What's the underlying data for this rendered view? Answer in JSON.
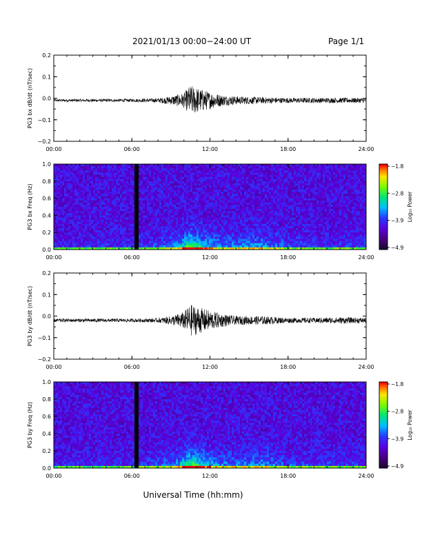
{
  "header": {
    "title": "2021/01/13  00:00−24:00 UT",
    "page": "Page 1/1"
  },
  "footer": {
    "xlabel": "Universal Time (hh:mm)"
  },
  "time_ticks": [
    "00:00",
    "06:00",
    "12:00",
    "18:00",
    "24:00"
  ],
  "chart_data": [
    {
      "type": "line",
      "ylabel": "PG3 bx dB/dt (nT/sec)",
      "xlim_hours": [
        0,
        24
      ],
      "ylim": [
        -0.2,
        0.2
      ],
      "yticks": [
        0.2,
        0.1,
        0.0,
        -0.1,
        -0.2
      ],
      "ytick_labels": [
        "0.2",
        "0.1",
        "0.0",
        "−0.1",
        "−0.2"
      ],
      "baseline": -0.01,
      "envelope": {
        "x": [
          0,
          6,
          8,
          9,
          10,
          10.5,
          11,
          12,
          13,
          14,
          16,
          18,
          20,
          22,
          24
        ],
        "amplitude": [
          0.006,
          0.007,
          0.01,
          0.02,
          0.035,
          0.07,
          0.06,
          0.04,
          0.025,
          0.02,
          0.015,
          0.012,
          0.012,
          0.012,
          0.012
        ]
      }
    },
    {
      "type": "heatmap",
      "ylabel": "PG3 bx Freq (Hz)",
      "xlim_hours": [
        0,
        24
      ],
      "ylim": [
        0.0,
        1.0
      ],
      "yticks": [
        1.0,
        0.8,
        0.6,
        0.4,
        0.2,
        0.0
      ],
      "ytick_labels": [
        "1.0",
        "0.8",
        "0.6",
        "0.4",
        "0.2",
        "0.0"
      ],
      "colorbar": {
        "label": "Log₁₀ Power",
        "range": [
          -4.9,
          -1.8
        ],
        "tick_labels": [
          "−1.8",
          "−2.8",
          "−3.9",
          "−4.9"
        ]
      },
      "data_gap_hours": 6.35
    },
    {
      "type": "line",
      "ylabel": "PG3 by dB/dt (nT/sec)",
      "xlim_hours": [
        0,
        24
      ],
      "ylim": [
        -0.2,
        0.2
      ],
      "yticks": [
        0.2,
        0.1,
        0.0,
        -0.1,
        -0.2
      ],
      "ytick_labels": [
        "0.2",
        "0.1",
        "0.0",
        "−0.1",
        "−0.2"
      ],
      "baseline": -0.02,
      "envelope": {
        "x": [
          0,
          6,
          8,
          9,
          10,
          10.5,
          11,
          12,
          13,
          14,
          16,
          18,
          20,
          22,
          24
        ],
        "amplitude": [
          0.008,
          0.008,
          0.01,
          0.02,
          0.04,
          0.075,
          0.065,
          0.045,
          0.03,
          0.02,
          0.02,
          0.012,
          0.012,
          0.015,
          0.012
        ]
      }
    },
    {
      "type": "heatmap",
      "ylabel": "PG3 by Freq (Hz)",
      "xlim_hours": [
        0,
        24
      ],
      "ylim": [
        0.0,
        1.0
      ],
      "yticks": [
        1.0,
        0.8,
        0.6,
        0.4,
        0.2,
        0.0
      ],
      "ytick_labels": [
        "1.0",
        "0.8",
        "0.6",
        "0.4",
        "0.2",
        "0.0"
      ],
      "colorbar": {
        "label": "Log₁₀ Power",
        "range": [
          -4.9,
          -1.8
        ],
        "tick_labels": [
          "−1.8",
          "−2.8",
          "−3.9",
          "−4.9"
        ]
      },
      "data_gap_hours": 6.35
    }
  ]
}
